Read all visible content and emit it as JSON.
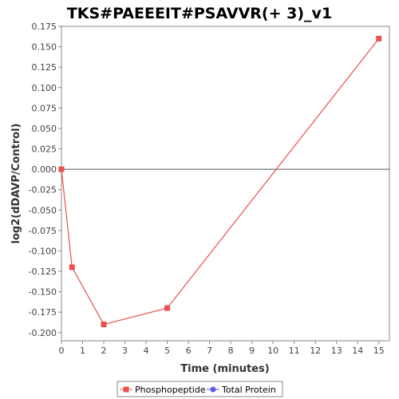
{
  "chart_data": {
    "type": "line",
    "title": "TKS#PAEEEIT#PSAVVR(+ 3)_v1",
    "xlabel": "Time (minutes)",
    "ylabel": "log2(dDAVP/Control)",
    "xlim": [
      0,
      15.5
    ],
    "ylim": [
      -0.21,
      0.175
    ],
    "x_ticks": [
      0,
      1,
      2,
      3,
      4,
      5,
      6,
      7,
      8,
      9,
      10,
      11,
      12,
      13,
      14,
      15
    ],
    "y_ticks": [
      0.175,
      0.15,
      0.125,
      0.1,
      0.075,
      0.05,
      0.025,
      0.0,
      -0.025,
      -0.05,
      -0.075,
      -0.1,
      -0.125,
      -0.15,
      -0.175,
      -0.2
    ],
    "y_tick_labels": [
      "0.175",
      "0.150",
      "0.125",
      "0.100",
      "0.075",
      "0.050",
      "0.025",
      "0.000",
      "-0.025",
      "-0.050",
      "-0.075",
      "-0.100",
      "-0.125",
      "-0.150",
      "-0.175",
      "-0.200"
    ],
    "grid": false,
    "zero_line": true,
    "legend_position": "bottom-center",
    "series": [
      {
        "name": "Phosphopeptide",
        "color": "#e8514f",
        "marker": "square",
        "x": [
          0,
          0.5,
          2,
          5,
          15
        ],
        "y": [
          0.0,
          -0.12,
          -0.19,
          -0.17,
          0.16
        ]
      },
      {
        "name": "Total Protein",
        "color": "#5a5af0",
        "marker": "circle",
        "x": [],
        "y": []
      }
    ]
  }
}
